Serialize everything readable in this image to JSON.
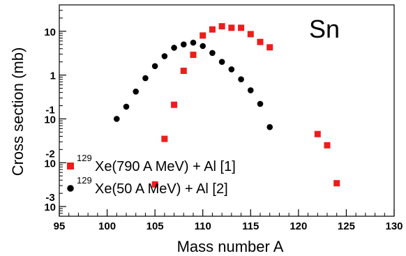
{
  "chart_data": {
    "type": "scatter",
    "panel_label": "Sn",
    "xlabel": "Mass number A",
    "ylabel": "Cross section (mb)",
    "xlim": [
      95,
      130
    ],
    "ylim": [
      0.0006,
      40
    ],
    "y_scale": "log",
    "grid": false,
    "legend_position": "bottom-left",
    "x_ticks": [
      {
        "value": 95,
        "label": "95"
      },
      {
        "value": 100,
        "label": "100"
      },
      {
        "value": 105,
        "label": "105"
      },
      {
        "value": 110,
        "label": "110"
      },
      {
        "value": 115,
        "label": "115"
      },
      {
        "value": 120,
        "label": "120"
      },
      {
        "value": 125,
        "label": "125"
      },
      {
        "value": 130,
        "label": "130"
      }
    ],
    "y_ticks": [
      {
        "value": 10,
        "base": "10",
        "exp": ""
      },
      {
        "value": 1,
        "base": "1",
        "exp": ""
      },
      {
        "value": 0.1,
        "base": "10",
        "exp": "-1"
      },
      {
        "value": 0.01,
        "base": "10",
        "exp": "-2"
      },
      {
        "value": 0.001,
        "base": "10",
        "exp": "-3"
      }
    ],
    "series": [
      {
        "name": "Xe(790 A MeV) + Al [1]",
        "name_sup": "129",
        "marker": "square",
        "color": "#ee1c1c",
        "points": [
          {
            "x": 105,
            "y": 0.0032
          },
          {
            "x": 106,
            "y": 0.035
          },
          {
            "x": 107,
            "y": 0.21
          },
          {
            "x": 108,
            "y": 1.25
          },
          {
            "x": 109,
            "y": 2.9
          },
          {
            "x": 110,
            "y": 8.0
          },
          {
            "x": 111,
            "y": 11.0
          },
          {
            "x": 112,
            "y": 13.0
          },
          {
            "x": 113,
            "y": 12.0
          },
          {
            "x": 114,
            "y": 12.0
          },
          {
            "x": 115,
            "y": 8.6
          },
          {
            "x": 116,
            "y": 5.7
          },
          {
            "x": 117,
            "y": 4.3
          },
          {
            "x": 122,
            "y": 0.045
          },
          {
            "x": 123,
            "y": 0.025
          },
          {
            "x": 124,
            "y": 0.0034
          }
        ]
      },
      {
        "name": "Xe(50 A MeV) + Al [2]",
        "name_sup": "129",
        "marker": "circle",
        "color": "#000000",
        "points": [
          {
            "x": 101,
            "y": 0.1
          },
          {
            "x": 102,
            "y": 0.19
          },
          {
            "x": 103,
            "y": 0.42
          },
          {
            "x": 104,
            "y": 0.85
          },
          {
            "x": 105,
            "y": 1.6
          },
          {
            "x": 106,
            "y": 2.7
          },
          {
            "x": 107,
            "y": 4.2
          },
          {
            "x": 108,
            "y": 5.0
          },
          {
            "x": 109,
            "y": 5.5
          },
          {
            "x": 110,
            "y": 4.6
          },
          {
            "x": 111,
            "y": 3.2
          },
          {
            "x": 112,
            "y": 2.0
          },
          {
            "x": 113,
            "y": 1.35
          },
          {
            "x": 114,
            "y": 0.8
          },
          {
            "x": 115,
            "y": 0.45
          },
          {
            "x": 116,
            "y": 0.22
          },
          {
            "x": 117,
            "y": 0.065
          }
        ]
      }
    ]
  }
}
